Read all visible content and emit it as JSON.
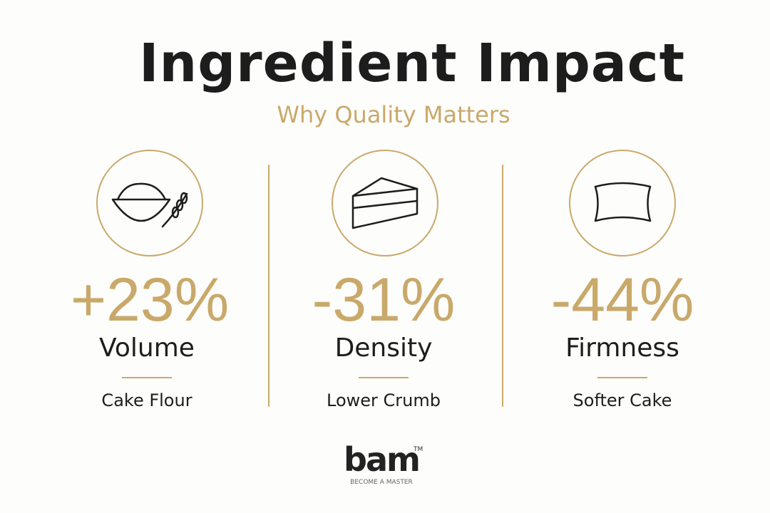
{
  "header": {
    "title": "Ingredient Impact",
    "subtitle": "Why Quality Matters"
  },
  "stats": [
    {
      "value": "+23%",
      "label": "Volume",
      "source": "Cake Flour"
    },
    {
      "value": "-31%",
      "label": "Density",
      "source": "Lower Crumb"
    },
    {
      "value": "-44%",
      "label": "Firmness",
      "source": "Softer Cake"
    }
  ],
  "logo": {
    "name": "bam",
    "mark": "TM",
    "tagline": "BECOME A MASTER"
  }
}
